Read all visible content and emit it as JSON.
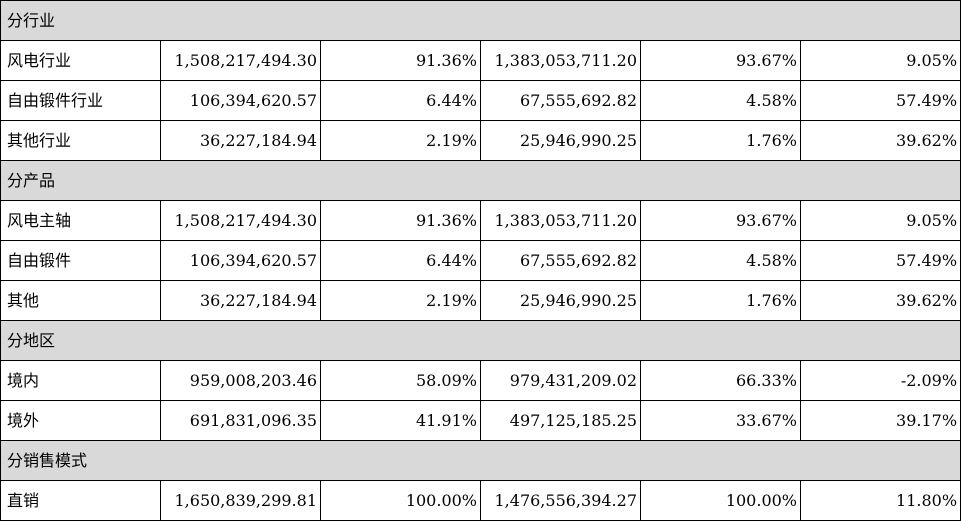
{
  "sections": [
    {
      "title": "分行业",
      "rows": [
        {
          "label": "风电行业",
          "values": [
            "1,508,217,494.30",
            "91.36%",
            "1,383,053,711.20",
            "93.67%",
            "9.05%"
          ]
        },
        {
          "label": "自由锻件行业",
          "values": [
            "106,394,620.57",
            "6.44%",
            "67,555,692.82",
            "4.58%",
            "57.49%"
          ]
        },
        {
          "label": "其他行业",
          "values": [
            "36,227,184.94",
            "2.19%",
            "25,946,990.25",
            "1.76%",
            "39.62%"
          ]
        }
      ]
    },
    {
      "title": "分产品",
      "rows": [
        {
          "label": "风电主轴",
          "values": [
            "1,508,217,494.30",
            "91.36%",
            "1,383,053,711.20",
            "93.67%",
            "9.05%"
          ]
        },
        {
          "label": "自由锻件",
          "values": [
            "106,394,620.57",
            "6.44%",
            "67,555,692.82",
            "4.58%",
            "57.49%"
          ]
        },
        {
          "label": "其他",
          "values": [
            "36,227,184.94",
            "2.19%",
            "25,946,990.25",
            "1.76%",
            "39.62%"
          ]
        }
      ]
    },
    {
      "title": "分地区",
      "rows": [
        {
          "label": "境内",
          "values": [
            "959,008,203.46",
            "58.09%",
            "979,431,209.02",
            "66.33%",
            "-2.09%"
          ]
        },
        {
          "label": "境外",
          "values": [
            "691,831,096.35",
            "41.91%",
            "497,125,185.25",
            "33.67%",
            "39.17%"
          ]
        }
      ]
    },
    {
      "title": "分销售模式",
      "rows": [
        {
          "label": "直销",
          "values": [
            "1,650,839,299.81",
            "100.00%",
            "1,476,556,394.27",
            "100.00%",
            "11.80%"
          ]
        }
      ]
    }
  ]
}
